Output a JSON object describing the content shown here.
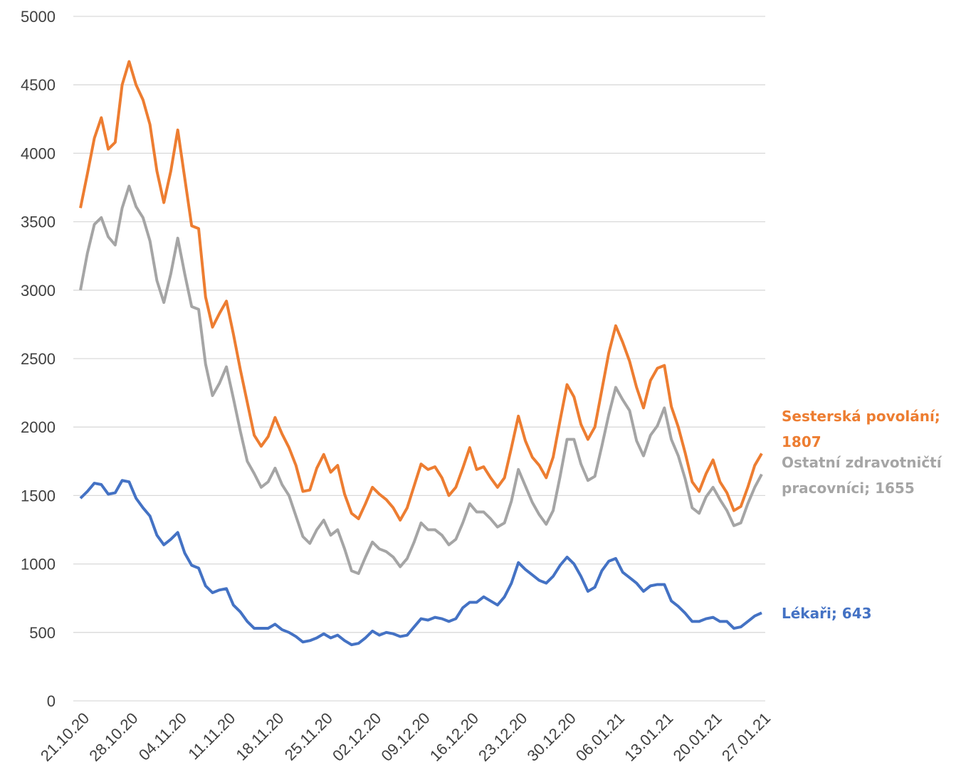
{
  "chart_data": {
    "type": "line",
    "categories": [
      "21.10.20",
      null,
      null,
      null,
      null,
      null,
      null,
      "28.10.20",
      null,
      null,
      null,
      null,
      null,
      null,
      "04.11.20",
      null,
      null,
      null,
      null,
      null,
      null,
      "11.11.20",
      null,
      null,
      null,
      null,
      null,
      null,
      "18.11.20",
      null,
      null,
      null,
      null,
      null,
      null,
      "25.11.20",
      null,
      null,
      null,
      null,
      null,
      null,
      "02.12.20",
      null,
      null,
      null,
      null,
      null,
      null,
      "09.12.20",
      null,
      null,
      null,
      null,
      null,
      null,
      "16.12.20",
      null,
      null,
      null,
      null,
      null,
      null,
      "23.12.20",
      null,
      null,
      null,
      null,
      null,
      null,
      "30.12.20",
      null,
      null,
      null,
      null,
      null,
      null,
      "06.01.21",
      null,
      null,
      null,
      null,
      null,
      null,
      "13.01.21",
      null,
      null,
      null,
      null,
      null,
      null,
      "20.01.21",
      null,
      null,
      null,
      null,
      null,
      null,
      "27.01.21"
    ],
    "series": [
      {
        "name": "Sesterská povolání; 1807",
        "color": "#ED7D31",
        "values": [
          3600,
          3850,
          4110,
          4260,
          4030,
          4080,
          4500,
          4670,
          4500,
          4390,
          4210,
          3870,
          3640,
          3870,
          4170,
          3820,
          3470,
          3450,
          2950,
          2730,
          2830,
          2920,
          2680,
          2420,
          2180,
          1940,
          1860,
          1930,
          2070,
          1950,
          1850,
          1720,
          1530,
          1540,
          1700,
          1800,
          1670,
          1720,
          1510,
          1370,
          1330,
          1440,
          1560,
          1510,
          1470,
          1410,
          1320,
          1410,
          1570,
          1730,
          1690,
          1710,
          1630,
          1500,
          1560,
          1700,
          1850,
          1690,
          1710,
          1630,
          1560,
          1630,
          1850,
          2080,
          1900,
          1780,
          1720,
          1630,
          1780,
          2050,
          2310,
          2220,
          2020,
          1910,
          2000,
          2270,
          2540,
          2740,
          2620,
          2480,
          2290,
          2140,
          2340,
          2430,
          2450,
          2150,
          2000,
          1810,
          1600,
          1530,
          1660,
          1760,
          1600,
          1520,
          1390,
          1420,
          1560,
          1720,
          1807
        ]
      },
      {
        "name": "Ostatní zdravotničtí pracovníci; 1655",
        "color": "#A5A5A5",
        "values": [
          3000,
          3270,
          3480,
          3530,
          3390,
          3330,
          3600,
          3760,
          3610,
          3530,
          3360,
          3070,
          2910,
          3120,
          3380,
          3120,
          2880,
          2860,
          2460,
          2230,
          2320,
          2440,
          2210,
          1970,
          1750,
          1660,
          1560,
          1600,
          1700,
          1580,
          1500,
          1350,
          1200,
          1150,
          1250,
          1320,
          1210,
          1250,
          1110,
          950,
          930,
          1050,
          1160,
          1110,
          1090,
          1050,
          980,
          1040,
          1160,
          1300,
          1250,
          1250,
          1210,
          1140,
          1180,
          1300,
          1440,
          1380,
          1380,
          1330,
          1270,
          1300,
          1460,
          1690,
          1570,
          1450,
          1360,
          1290,
          1390,
          1640,
          1910,
          1910,
          1730,
          1610,
          1640,
          1860,
          2090,
          2290,
          2200,
          2120,
          1900,
          1790,
          1940,
          2010,
          2140,
          1910,
          1790,
          1620,
          1410,
          1370,
          1490,
          1560,
          1470,
          1390,
          1280,
          1300,
          1440,
          1560,
          1655
        ]
      },
      {
        "name": "Lékaři; 643",
        "color": "#4472C4",
        "values": [
          1480,
          1530,
          1590,
          1580,
          1510,
          1520,
          1610,
          1600,
          1480,
          1410,
          1350,
          1210,
          1140,
          1180,
          1230,
          1080,
          990,
          970,
          840,
          790,
          810,
          820,
          700,
          650,
          580,
          530,
          530,
          530,
          560,
          520,
          500,
          470,
          430,
          440,
          460,
          490,
          460,
          480,
          440,
          410,
          420,
          460,
          510,
          480,
          500,
          490,
          470,
          480,
          540,
          600,
          590,
          610,
          600,
          580,
          600,
          680,
          720,
          720,
          760,
          730,
          700,
          760,
          860,
          1010,
          960,
          920,
          880,
          860,
          910,
          990,
          1050,
          1000,
          910,
          800,
          830,
          950,
          1020,
          1040,
          940,
          900,
          860,
          800,
          840,
          850,
          850,
          730,
          690,
          640,
          580,
          580,
          600,
          610,
          580,
          580,
          530,
          540,
          580,
          620,
          643
        ]
      }
    ],
    "ylim": [
      0,
      5000
    ],
    "yticks": [
      0,
      500,
      1000,
      1500,
      2000,
      2500,
      3000,
      3500,
      4000,
      4500,
      5000
    ],
    "grid": true
  }
}
